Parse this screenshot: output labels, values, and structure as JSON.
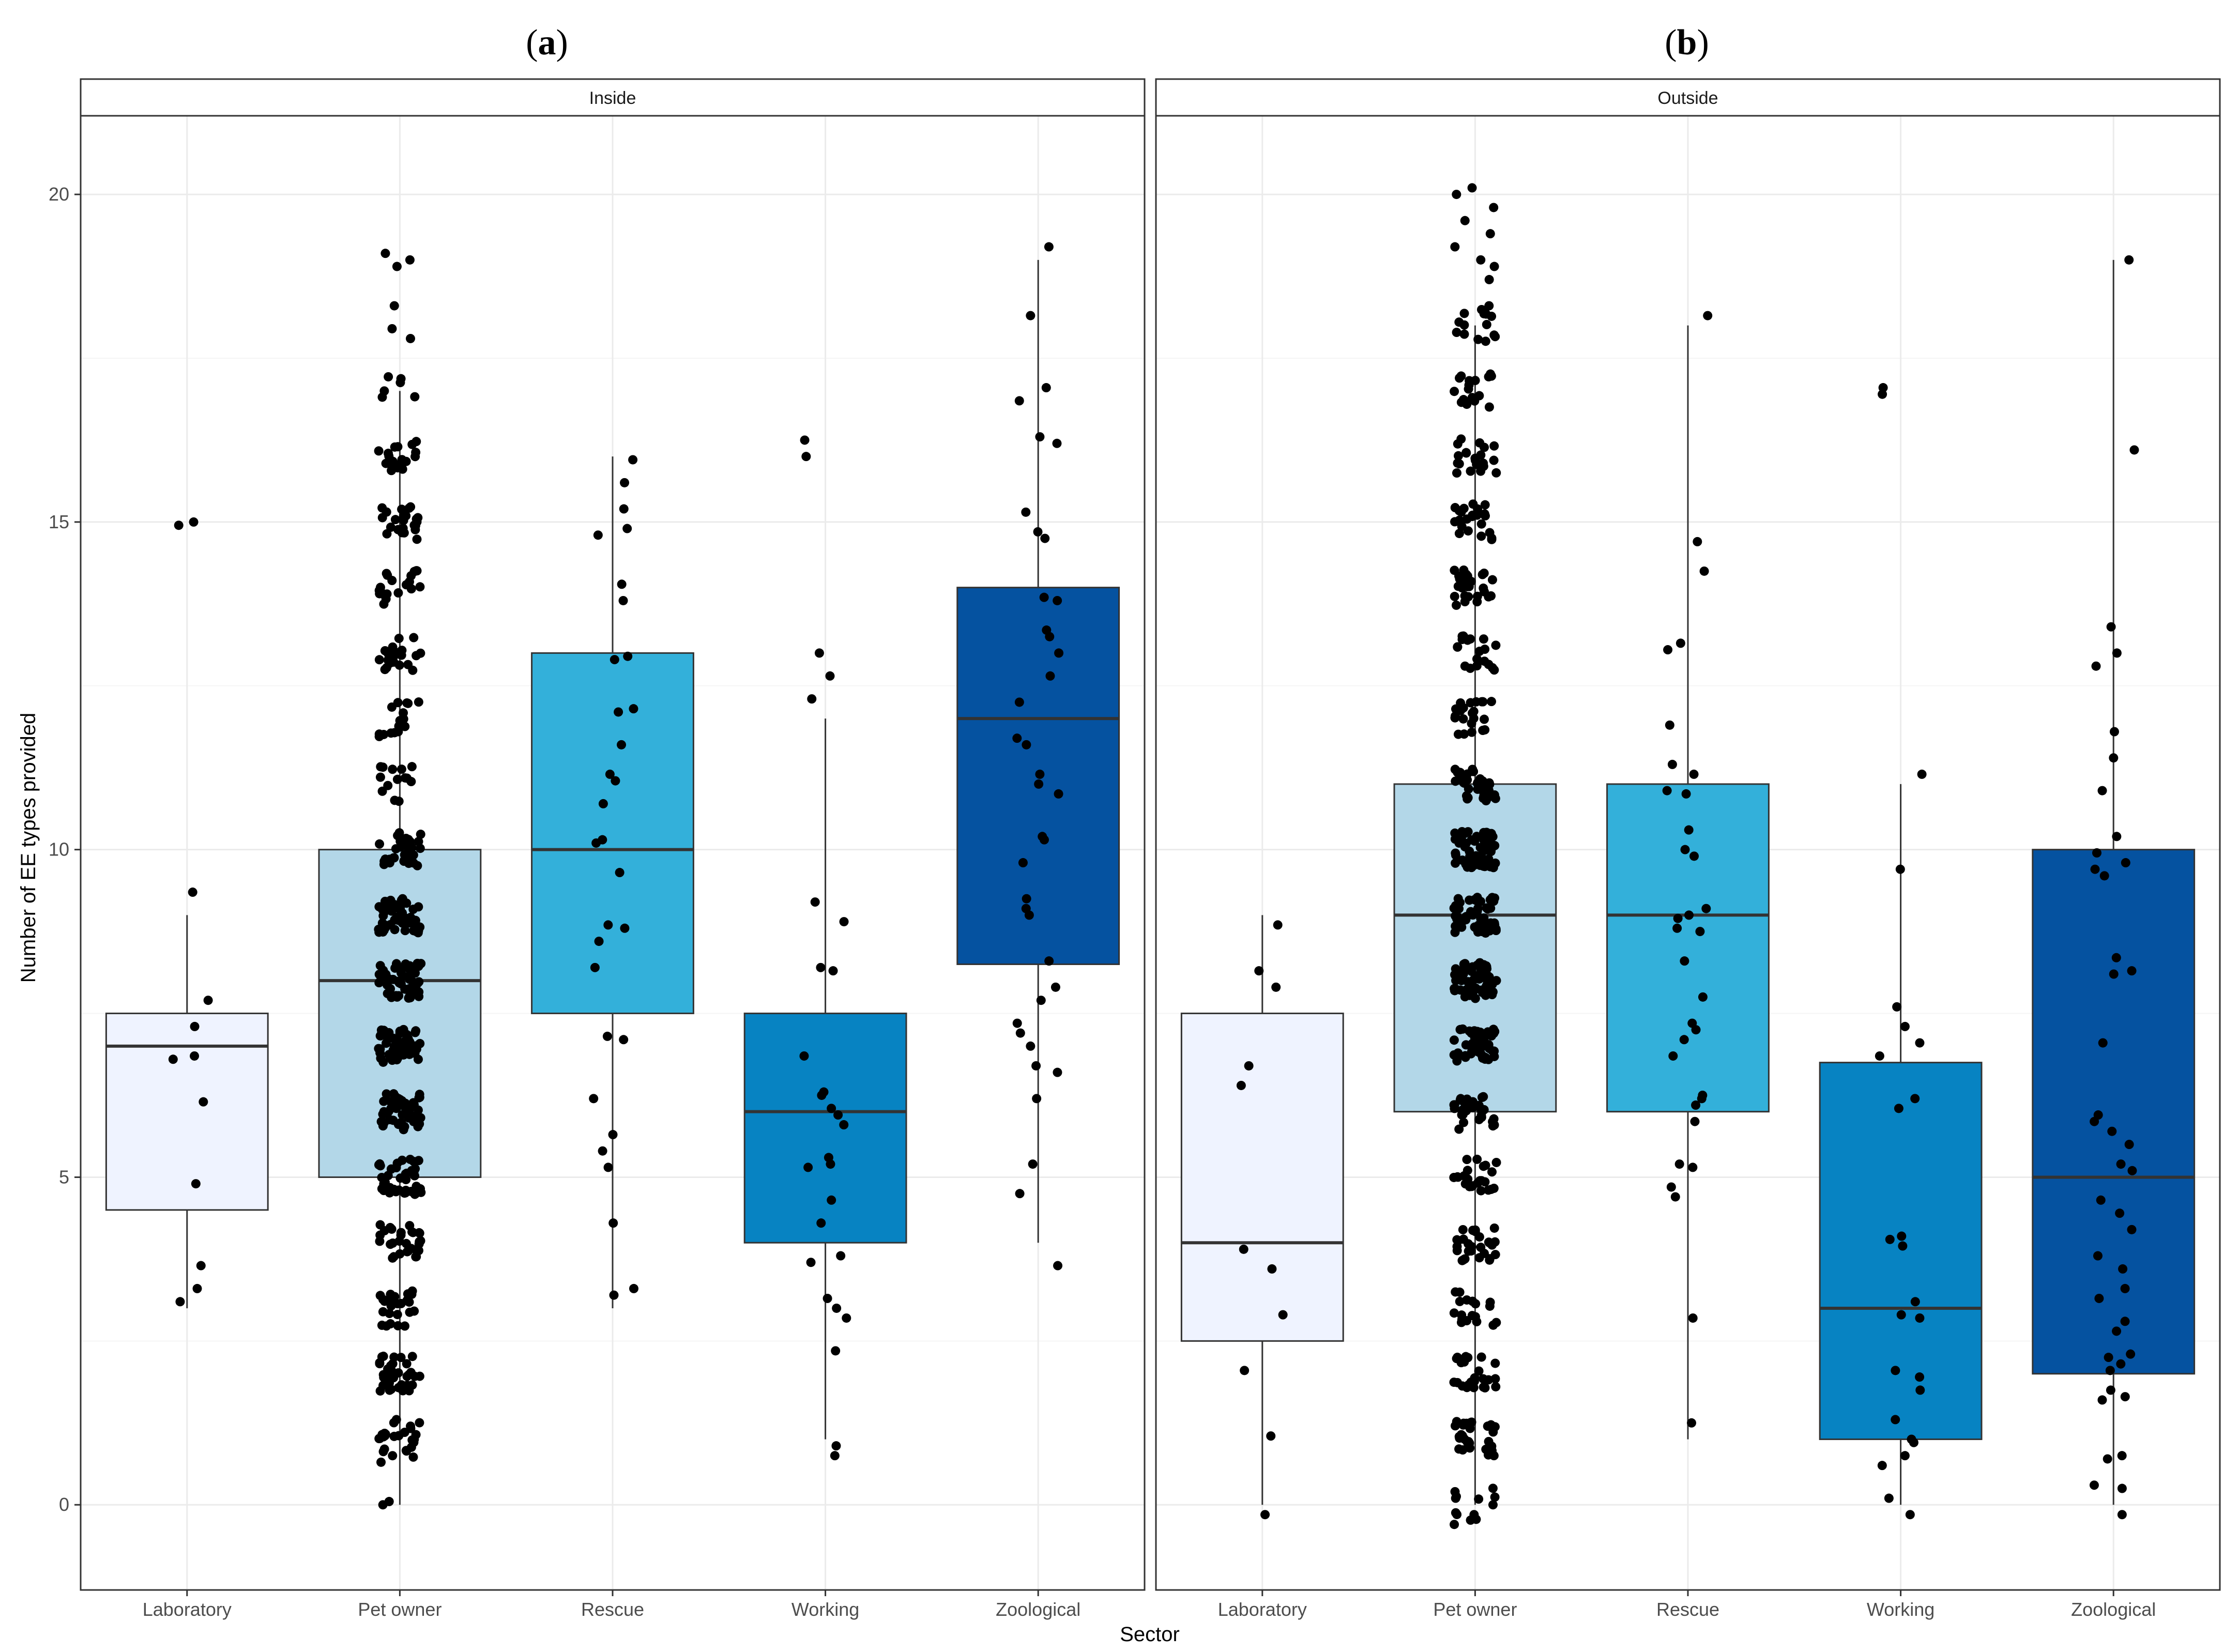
{
  "colors": {
    "Laboratory": "#eff3ff",
    "Pet owner": "#b3d7e8",
    "Rescue": "#33b0da",
    "Working": "#0783c2",
    "Zoological": "#0552a0"
  },
  "chart_data": {
    "type": "box",
    "xlabel": "Sector",
    "ylabel": "Number of EE types provided",
    "ylim": [
      -1.3,
      21.2
    ],
    "yticks": [
      0,
      5,
      10,
      15,
      20
    ],
    "categories": [
      "Laboratory",
      "Pet owner",
      "Rescue",
      "Working",
      "Zoological"
    ],
    "panels": [
      {
        "label_letter": "a",
        "label_open": "(",
        "label_close": ")",
        "strip": "Inside",
        "boxes": [
          {
            "category": "Laboratory",
            "lower_whisker": 3,
            "q1": 4.5,
            "median": 7,
            "q3": 7.5,
            "upper_whisker": 9,
            "points": [
              15.0,
              14.95,
              9.35,
              7.7,
              7.3,
              6.85,
              6.8,
              6.15,
              4.9,
              3.65,
              3.3,
              3.1
            ]
          },
          {
            "category": "Pet owner",
            "lower_whisker": 0,
            "q1": 5,
            "median": 8,
            "q3": 10,
            "upper_whisker": 17,
            "n_points": 520,
            "point_range": [
              0,
              19.1
            ],
            "points": [
              19.1,
              19.0,
              18.9,
              18.3,
              17.95,
              17.8,
              17.0,
              0.0,
              0.05,
              0.65,
              0.85,
              1.0,
              1.2,
              1.3
            ]
          },
          {
            "category": "Rescue",
            "lower_whisker": 3,
            "q1": 7.5,
            "median": 10,
            "q3": 13,
            "upper_whisker": 16,
            "points": [
              15.95,
              15.6,
              15.2,
              14.9,
              14.8,
              14.05,
              13.8,
              12.95,
              12.9,
              12.15,
              12.1,
              11.6,
              11.15,
              11.05,
              10.7,
              10.15,
              10.1,
              9.65,
              8.85,
              8.8,
              8.6,
              8.2,
              7.15,
              7.1,
              6.2,
              5.65,
              5.4,
              5.15,
              4.3,
              3.3,
              3.2
            ]
          },
          {
            "category": "Working",
            "lower_whisker": 1,
            "q1": 4,
            "median": 6,
            "q3": 7.5,
            "upper_whisker": 12,
            "points": [
              16.25,
              16.0,
              13.0,
              12.65,
              12.3,
              9.2,
              8.9,
              8.2,
              8.15,
              6.85,
              6.3,
              6.25,
              6.05,
              5.95,
              5.8,
              5.3,
              5.2,
              5.15,
              4.65,
              4.3,
              3.8,
              3.7,
              3.15,
              3.0,
              2.85,
              2.35,
              0.9,
              0.75
            ]
          },
          {
            "category": "Zoological",
            "lower_whisker": 4,
            "q1": 8.25,
            "median": 12,
            "q3": 14,
            "upper_whisker": 19,
            "points": [
              19.2,
              18.15,
              17.05,
              16.85,
              16.3,
              16.2,
              15.15,
              14.85,
              14.75,
              13.85,
              13.8,
              13.35,
              13.25,
              13.0,
              12.65,
              12.25,
              11.7,
              11.6,
              11.15,
              11.0,
              10.85,
              10.2,
              10.15,
              9.8,
              9.25,
              9.1,
              9.0,
              8.3,
              7.9,
              7.7,
              7.35,
              7.2,
              7.0,
              6.7,
              6.6,
              6.2,
              5.2,
              4.75,
              3.65
            ]
          }
        ]
      },
      {
        "label_letter": "b",
        "label_open": "(",
        "label_close": ")",
        "strip": "Outside",
        "boxes": [
          {
            "category": "Laboratory",
            "lower_whisker": 0,
            "q1": 2.5,
            "median": 4,
            "q3": 7.5,
            "upper_whisker": 9,
            "points": [
              8.85,
              8.15,
              7.9,
              6.7,
              6.4,
              3.9,
              3.6,
              2.9,
              2.05,
              1.05,
              -0.15
            ]
          },
          {
            "category": "Pet owner",
            "lower_whisker": 0,
            "q1": 6,
            "median": 9,
            "q3": 11,
            "upper_whisker": 18,
            "n_points": 600,
            "point_range": [
              -0.3,
              20.1
            ],
            "points": [
              20.1,
              20.0,
              19.8,
              19.6,
              19.4,
              19.2,
              19.0,
              18.9,
              18.7,
              18.3,
              -0.3,
              -0.15,
              0.0,
              0.1,
              0.2
            ]
          },
          {
            "category": "Rescue",
            "lower_whisker": 1,
            "q1": 6,
            "median": 9,
            "q3": 11,
            "upper_whisker": 18,
            "points": [
              18.15,
              14.7,
              14.25,
              13.15,
              13.05,
              11.9,
              11.3,
              11.15,
              10.9,
              10.85,
              10.3,
              10.0,
              9.9,
              9.1,
              9.0,
              8.95,
              8.8,
              8.75,
              8.3,
              7.75,
              7.35,
              7.25,
              7.1,
              6.85,
              6.25,
              6.2,
              6.1,
              5.85,
              5.2,
              5.15,
              4.85,
              4.7,
              2.85,
              1.25
            ]
          },
          {
            "category": "Working",
            "lower_whisker": 0,
            "q1": 1,
            "median": 3,
            "q3": 6.75,
            "upper_whisker": 11,
            "points": [
              17.05,
              16.95,
              11.15,
              9.7,
              7.6,
              7.3,
              7.05,
              6.85,
              6.2,
              6.05,
              4.1,
              4.05,
              3.95,
              3.1,
              2.9,
              2.85,
              2.05,
              1.95,
              1.75,
              1.3,
              1.0,
              0.95,
              0.75,
              0.6,
              0.1,
              -0.15
            ]
          },
          {
            "category": "Zoological",
            "lower_whisker": 0,
            "q1": 2,
            "median": 5,
            "q3": 10,
            "upper_whisker": 19,
            "points": [
              19.0,
              16.1,
              13.4,
              13.0,
              12.8,
              11.8,
              11.4,
              10.9,
              10.2,
              9.95,
              9.8,
              9.7,
              9.6,
              8.35,
              8.15,
              8.1,
              7.05,
              5.95,
              5.85,
              5.7,
              5.5,
              5.2,
              5.1,
              4.65,
              4.45,
              4.2,
              3.8,
              3.6,
              3.3,
              3.15,
              2.8,
              2.65,
              2.3,
              2.25,
              2.15,
              2.05,
              1.75,
              1.65,
              1.6,
              0.75,
              0.7,
              0.3,
              0.25,
              -0.15
            ]
          }
        ]
      }
    ]
  }
}
